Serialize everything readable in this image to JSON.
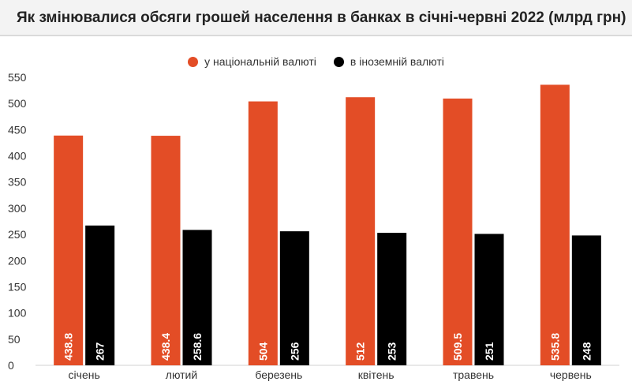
{
  "chart_data": {
    "type": "bar",
    "title": "Як змінювалися обсяги грошей населення в банках в січні-червні 2022 (млрд грн)",
    "categories": [
      "січень",
      "лютий",
      "березень",
      "квітень",
      "травень",
      "червень"
    ],
    "series": [
      {
        "name": "у національній валюті",
        "color": "#e34d26",
        "values": [
          438.8,
          438.4,
          504,
          512,
          509.5,
          535.8
        ]
      },
      {
        "name": "в іноземній валюті",
        "color": "#000000",
        "values": [
          267,
          258.6,
          256,
          253,
          251,
          248
        ]
      }
    ],
    "ylim": [
      0,
      550
    ],
    "yticks": [
      0,
      50,
      100,
      150,
      200,
      250,
      300,
      350,
      400,
      450,
      500,
      550
    ],
    "legend_position": "top-center",
    "grid": false
  }
}
